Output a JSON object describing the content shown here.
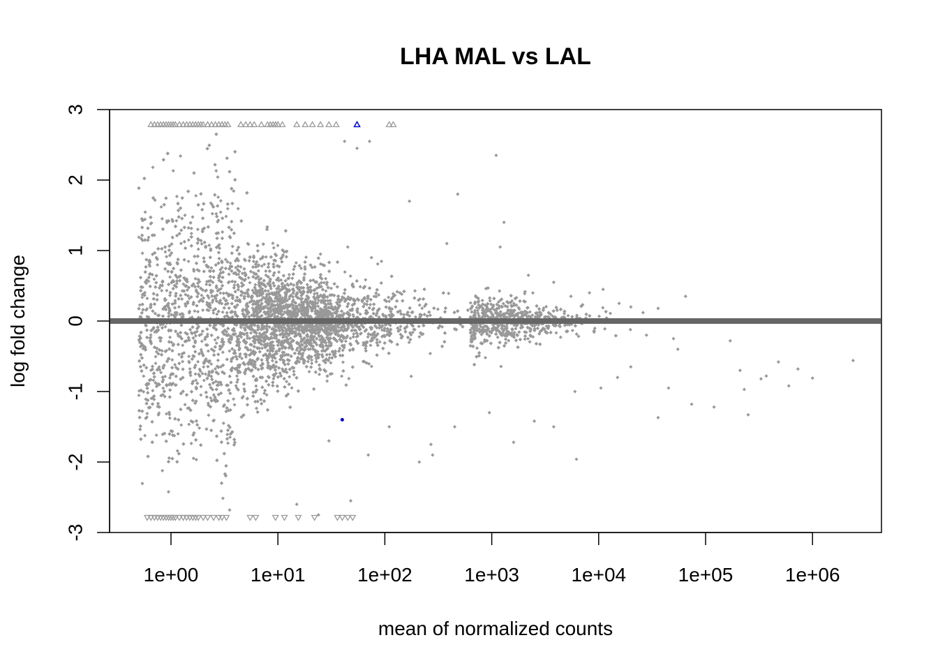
{
  "chart_data": {
    "type": "scatter",
    "title": "LHA MAL vs LAL",
    "xlabel": "mean of normalized counts",
    "ylabel": "log fold change",
    "x_scale": "log10",
    "xlim": [
      0.3,
      4500000
    ],
    "ylim": [
      -3,
      3
    ],
    "x_tick_labels": [
      "1e+00",
      "1e+01",
      "1e+02",
      "1e+03",
      "1e+04",
      "1e+05",
      "1e+06"
    ],
    "x_tick_values": [
      1,
      10,
      100,
      1000,
      10000,
      100000,
      1000000
    ],
    "y_tick_labels": [
      "-3",
      "-2",
      "-1",
      "0",
      "1",
      "2",
      "3"
    ],
    "y_tick_values": [
      -3,
      -2,
      -1,
      0,
      1,
      2,
      3
    ],
    "grid": false,
    "reference_line": {
      "y": 0,
      "color": "#666666"
    },
    "colors": {
      "not_significant": "#999999",
      "significant": "#0000cc",
      "axis": "#000000"
    },
    "sparse_points": [
      [
        42,
        2.55
      ],
      [
        55,
        2.45
      ],
      [
        72,
        2.55
      ],
      [
        1100,
        2.35
      ],
      [
        170,
        1.7
      ],
      [
        480,
        1.8
      ],
      [
        1300,
        1.4
      ],
      [
        45,
        1.05
      ],
      [
        25,
        0.95
      ],
      [
        75,
        0.9
      ],
      [
        1200,
        1.05
      ],
      [
        380,
        1.1
      ],
      [
        2200,
        0.65
      ],
      [
        3800,
        0.55
      ],
      [
        5500,
        0.35
      ],
      [
        8200,
        0.4
      ],
      [
        11000,
        0.45
      ],
      [
        15500,
        0.25
      ],
      [
        20000,
        0.2
      ],
      [
        26000,
        0.12
      ],
      [
        36000,
        0.18
      ],
      [
        65000,
        0.35
      ],
      [
        6000,
        -1.0
      ],
      [
        10500,
        -0.95
      ],
      [
        15000,
        -0.8
      ],
      [
        20000,
        -0.65
      ],
      [
        28000,
        -0.2
      ],
      [
        36000,
        -1.37
      ],
      [
        45000,
        -0.95
      ],
      [
        50000,
        -0.25
      ],
      [
        55000,
        -0.4
      ],
      [
        74000,
        -1.18
      ],
      [
        120000,
        -1.22
      ],
      [
        170000,
        -0.28
      ],
      [
        210000,
        -0.7
      ],
      [
        230000,
        -0.97
      ],
      [
        250000,
        -1.33
      ],
      [
        330000,
        -0.82
      ],
      [
        370000,
        -0.78
      ],
      [
        480000,
        -0.58
      ],
      [
        600000,
        -0.92
      ],
      [
        730000,
        -0.68
      ],
      [
        1000000,
        -0.81
      ],
      [
        2400000,
        -0.56
      ],
      [
        6200,
        -1.96
      ],
      [
        3800,
        -1.5
      ],
      [
        2500,
        -1.42
      ],
      [
        1600,
        -1.72
      ],
      [
        950,
        -1.3
      ],
      [
        450,
        -1.5
      ],
      [
        270,
        -1.75
      ],
      [
        210,
        -2.0
      ],
      [
        110,
        -1.5
      ],
      [
        70,
        -1.9
      ],
      [
        48,
        -2.55
      ],
      [
        24,
        -2.75
      ],
      [
        15,
        -2.6
      ],
      [
        30,
        -1.7
      ],
      [
        280,
        -1.9
      ]
    ],
    "significant_points": [
      {
        "x": 40,
        "y": -1.4,
        "shape": "dot"
      },
      {
        "x": 55,
        "y": 2.78,
        "shape": "triangle-up"
      }
    ],
    "capped_up_x": [
      0.65,
      0.7,
      0.75,
      0.8,
      0.85,
      0.9,
      0.95,
      1.0,
      1.05,
      1.1,
      1.2,
      1.3,
      1.4,
      1.5,
      1.6,
      1.7,
      1.8,
      1.9,
      2.0,
      2.2,
      2.4,
      2.6,
      2.8,
      3.0,
      3.2,
      3.4,
      4.5,
      5.0,
      5.5,
      6.0,
      7.0,
      8.0,
      8.5,
      9.0,
      9.5,
      10.0,
      11.0,
      15,
      18,
      21,
      25,
      30,
      35,
      110,
      120
    ],
    "capped_down_x": [
      0.6,
      0.65,
      0.7,
      0.75,
      0.8,
      0.85,
      0.9,
      0.95,
      1.0,
      1.05,
      1.1,
      1.2,
      1.3,
      1.4,
      1.5,
      1.6,
      1.7,
      1.8,
      2.0,
      2.2,
      2.5,
      2.8,
      3.0,
      3.3,
      5.5,
      6.2,
      9.5,
      11.5,
      15.5,
      22,
      36,
      40,
      45,
      50
    ]
  }
}
